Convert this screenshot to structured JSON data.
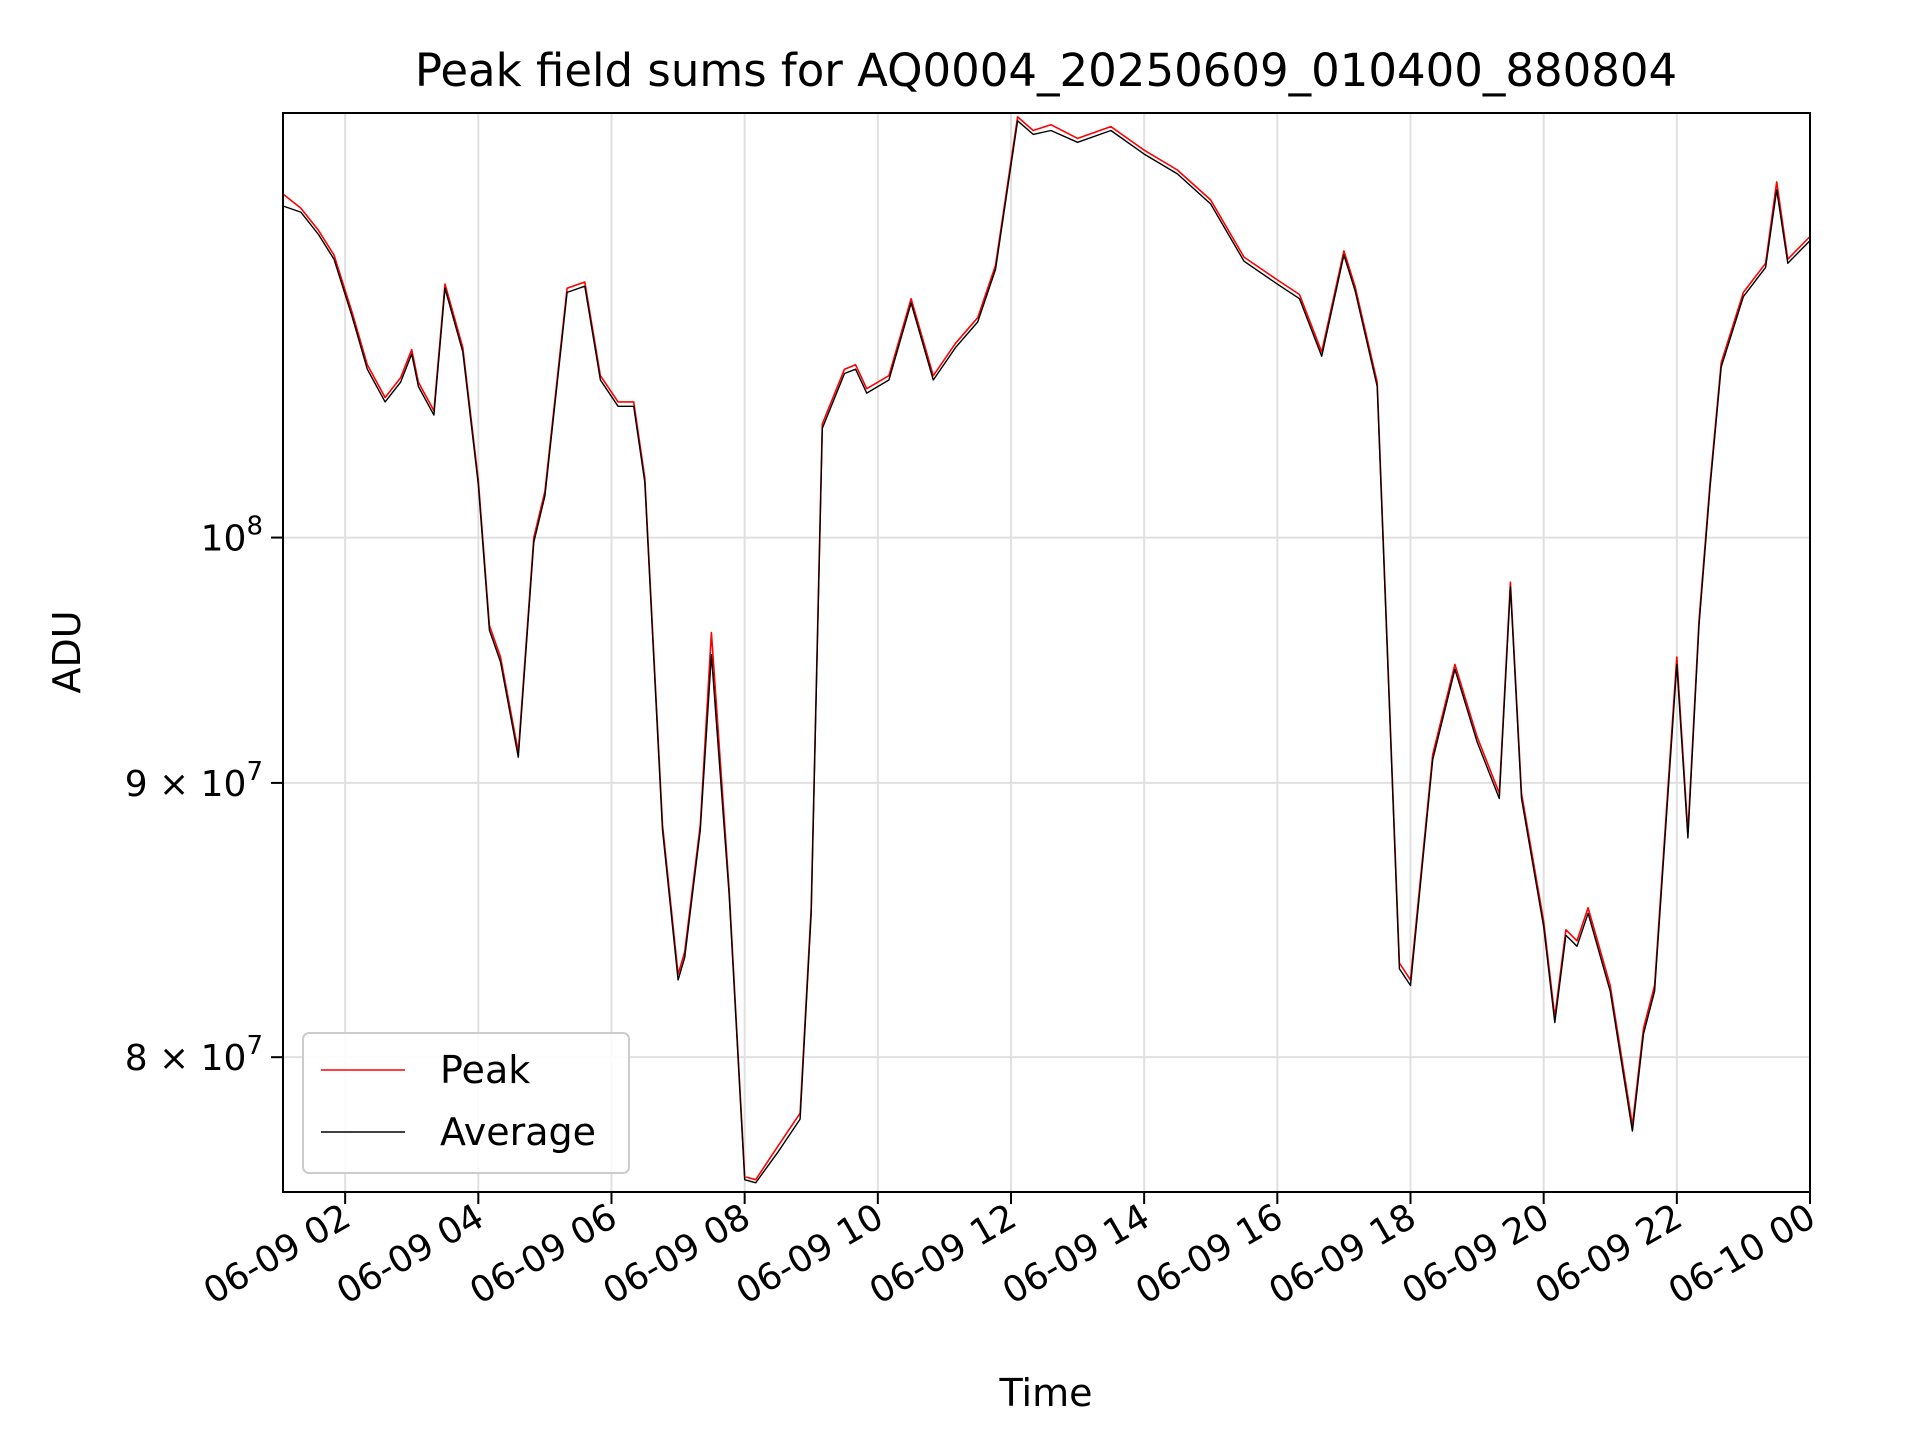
{
  "chart_data": {
    "type": "line",
    "title": "Peak field sums for AQ0004_20250609_010400_880804",
    "xlabel": "Time",
    "ylabel": "ADU",
    "x_range": [
      "2025-06-09 01:04",
      "2025-06-10 00:00"
    ],
    "x_ticks": [
      "06-09 02",
      "06-09 04",
      "06-09 06",
      "06-09 08",
      "06-09 10",
      "06-09 12",
      "06-09 14",
      "06-09 16",
      "06-09 18",
      "06-09 20",
      "06-09 22",
      "06-10 00"
    ],
    "y_scale": "log",
    "ylim": [
      75500000,
      120000000
    ],
    "y_ticks": [
      {
        "value": 80000000,
        "label": "8 × 10",
        "exp": "7"
      },
      {
        "value": 90000000,
        "label": "9 × 10",
        "exp": "7"
      },
      {
        "value": 100000000,
        "label": "10",
        "exp": "8"
      }
    ],
    "grid": true,
    "legend_position": "lower-left",
    "legend": [
      "Peak",
      "Average"
    ],
    "series_colors": {
      "Peak": "#ff0000",
      "Average": "#000000"
    },
    "series": [
      {
        "name": "Average",
        "x": [
          "2025-06-09 01:04",
          "2025-06-09 01:20",
          "2025-06-09 01:36",
          "2025-06-09 01:50",
          "2025-06-09 02:06",
          "2025-06-09 02:20",
          "2025-06-09 02:36",
          "2025-06-09 02:50",
          "2025-06-09 03:00",
          "2025-06-09 03:06",
          "2025-06-09 03:20",
          "2025-06-09 03:30",
          "2025-06-09 03:46",
          "2025-06-09 04:00",
          "2025-06-09 04:10",
          "2025-06-09 04:20",
          "2025-06-09 04:36",
          "2025-06-09 04:50",
          "2025-06-09 05:00",
          "2025-06-09 05:20",
          "2025-06-09 05:36",
          "2025-06-09 05:50",
          "2025-06-09 06:06",
          "2025-06-09 06:20",
          "2025-06-09 06:30",
          "2025-06-09 06:46",
          "2025-06-09 07:00",
          "2025-06-09 07:06",
          "2025-06-09 07:20",
          "2025-06-09 07:30",
          "2025-06-09 07:46",
          "2025-06-09 08:00",
          "2025-06-09 08:10",
          "2025-06-09 08:30",
          "2025-06-09 08:50",
          "2025-06-09 09:00",
          "2025-06-09 09:10",
          "2025-06-09 09:30",
          "2025-06-09 09:40",
          "2025-06-09 09:50",
          "2025-06-09 10:10",
          "2025-06-09 10:30",
          "2025-06-09 10:50",
          "2025-06-09 11:10",
          "2025-06-09 11:30",
          "2025-06-09 11:46",
          "2025-06-09 12:06",
          "2025-06-09 12:20",
          "2025-06-09 12:36",
          "2025-06-09 13:00",
          "2025-06-09 13:30",
          "2025-06-09 14:00",
          "2025-06-09 14:30",
          "2025-06-09 15:00",
          "2025-06-09 15:30",
          "2025-06-09 16:00",
          "2025-06-09 16:20",
          "2025-06-09 16:40",
          "2025-06-09 17:00",
          "2025-06-09 17:10",
          "2025-06-09 17:30",
          "2025-06-09 17:50",
          "2025-06-09 18:00",
          "2025-06-09 18:20",
          "2025-06-09 18:40",
          "2025-06-09 19:00",
          "2025-06-09 19:20",
          "2025-06-09 19:30",
          "2025-06-09 19:40",
          "2025-06-09 20:00",
          "2025-06-09 20:10",
          "2025-06-09 20:20",
          "2025-06-09 20:30",
          "2025-06-09 20:40",
          "2025-06-09 21:00",
          "2025-06-09 21:20",
          "2025-06-09 21:30",
          "2025-06-09 21:40",
          "2025-06-09 22:00",
          "2025-06-09 22:10",
          "2025-06-09 22:20",
          "2025-06-09 22:30",
          "2025-06-09 22:40",
          "2025-06-09 23:00",
          "2025-06-09 23:20",
          "2025-06-09 23:30",
          "2025-06-09 23:40",
          "2025-06-10 00:00"
        ],
        "values": [
          115300000,
          115000000,
          113900000,
          112700000,
          110000000,
          107500000,
          106000000,
          106900000,
          108200000,
          106700000,
          105400000,
          111300000,
          108300000,
          102300000,
          96100000,
          94800000,
          91000000,
          99800000,
          101800000,
          111100000,
          111400000,
          107000000,
          105800000,
          105800000,
          102400000,
          88200000,
          82700000,
          83500000,
          88200000,
          95100000,
          85800000,
          75900000,
          75800000,
          76800000,
          77900000,
          85100000,
          104800000,
          107300000,
          107500000,
          106400000,
          107000000,
          110600000,
          107000000,
          108500000,
          109700000,
          112200000,
          119600000,
          118900000,
          119100000,
          118500000,
          119100000,
          117900000,
          116900000,
          115400000,
          112600000,
          111500000,
          110800000,
          108100000,
          112900000,
          111200000,
          106700000,
          83100000,
          82500000,
          90900000,
          94500000,
          91600000,
          89400000,
          97900000,
          89400000,
          84600000,
          81200000,
          84300000,
          83900000,
          85100000,
          82300000,
          77500000,
          80800000,
          82300000,
          94700000,
          87900000,
          96300000,
          102200000,
          107600000,
          110900000,
          112300000,
          116100000,
          112500000,
          113600000
        ]
      },
      {
        "name": "Peak",
        "x": [
          "2025-06-09 01:04",
          "2025-06-09 01:20",
          "2025-06-09 01:36",
          "2025-06-09 01:50",
          "2025-06-09 02:06",
          "2025-06-09 02:20",
          "2025-06-09 02:36",
          "2025-06-09 02:50",
          "2025-06-09 03:00",
          "2025-06-09 03:06",
          "2025-06-09 03:20",
          "2025-06-09 03:30",
          "2025-06-09 03:46",
          "2025-06-09 04:00",
          "2025-06-09 04:10",
          "2025-06-09 04:20",
          "2025-06-09 04:36",
          "2025-06-09 04:50",
          "2025-06-09 05:00",
          "2025-06-09 05:20",
          "2025-06-09 05:36",
          "2025-06-09 05:50",
          "2025-06-09 06:06",
          "2025-06-09 06:20",
          "2025-06-09 06:30",
          "2025-06-09 06:46",
          "2025-06-09 07:00",
          "2025-06-09 07:06",
          "2025-06-09 07:20",
          "2025-06-09 07:30",
          "2025-06-09 07:46",
          "2025-06-09 08:00",
          "2025-06-09 08:10",
          "2025-06-09 08:30",
          "2025-06-09 08:50",
          "2025-06-09 09:00",
          "2025-06-09 09:10",
          "2025-06-09 09:30",
          "2025-06-09 09:40",
          "2025-06-09 09:50",
          "2025-06-09 10:10",
          "2025-06-09 10:30",
          "2025-06-09 10:50",
          "2025-06-09 11:10",
          "2025-06-09 11:30",
          "2025-06-09 11:46",
          "2025-06-09 12:06",
          "2025-06-09 12:20",
          "2025-06-09 12:36",
          "2025-06-09 13:00",
          "2025-06-09 13:30",
          "2025-06-09 14:00",
          "2025-06-09 14:30",
          "2025-06-09 15:00",
          "2025-06-09 15:30",
          "2025-06-09 16:00",
          "2025-06-09 16:20",
          "2025-06-09 16:40",
          "2025-06-09 17:00",
          "2025-06-09 17:10",
          "2025-06-09 17:30",
          "2025-06-09 17:50",
          "2025-06-09 18:00",
          "2025-06-09 18:20",
          "2025-06-09 18:40",
          "2025-06-09 19:00",
          "2025-06-09 19:20",
          "2025-06-09 19:30",
          "2025-06-09 19:40",
          "2025-06-09 20:00",
          "2025-06-09 20:10",
          "2025-06-09 20:20",
          "2025-06-09 20:30",
          "2025-06-09 20:40",
          "2025-06-09 21:00",
          "2025-06-09 21:20",
          "2025-06-09 21:30",
          "2025-06-09 21:40",
          "2025-06-09 22:00",
          "2025-06-09 22:10",
          "2025-06-09 22:20",
          "2025-06-09 22:30",
          "2025-06-09 22:40",
          "2025-06-09 23:00",
          "2025-06-09 23:20",
          "2025-06-09 23:30",
          "2025-06-09 23:40",
          "2025-06-10 00:00"
        ],
        "values": [
          115900000,
          115200000,
          114100000,
          112900000,
          110200000,
          107700000,
          106200000,
          107100000,
          108400000,
          106900000,
          105600000,
          111500000,
          108500000,
          102500000,
          96300000,
          95000000,
          91200000,
          100000000,
          102000000,
          111300000,
          111600000,
          107200000,
          106000000,
          106000000,
          102600000,
          88400000,
          82900000,
          83700000,
          88400000,
          96000000,
          86000000,
          76000000,
          75900000,
          77000000,
          78100000,
          85300000,
          105000000,
          107500000,
          107700000,
          106600000,
          107200000,
          110800000,
          107200000,
          108700000,
          109900000,
          112400000,
          119800000,
          119100000,
          119400000,
          118700000,
          119300000,
          118100000,
          117100000,
          115600000,
          112800000,
          111700000,
          111000000,
          108300000,
          113100000,
          111400000,
          106900000,
          83300000,
          82700000,
          91100000,
          94700000,
          91800000,
          89600000,
          98100000,
          89600000,
          84800000,
          81400000,
          84500000,
          84100000,
          85300000,
          82500000,
          77700000,
          81000000,
          82500000,
          95000000,
          88100000,
          96500000,
          102400000,
          107800000,
          111100000,
          112500000,
          116500000,
          112700000,
          113800000
        ]
      }
    ]
  }
}
